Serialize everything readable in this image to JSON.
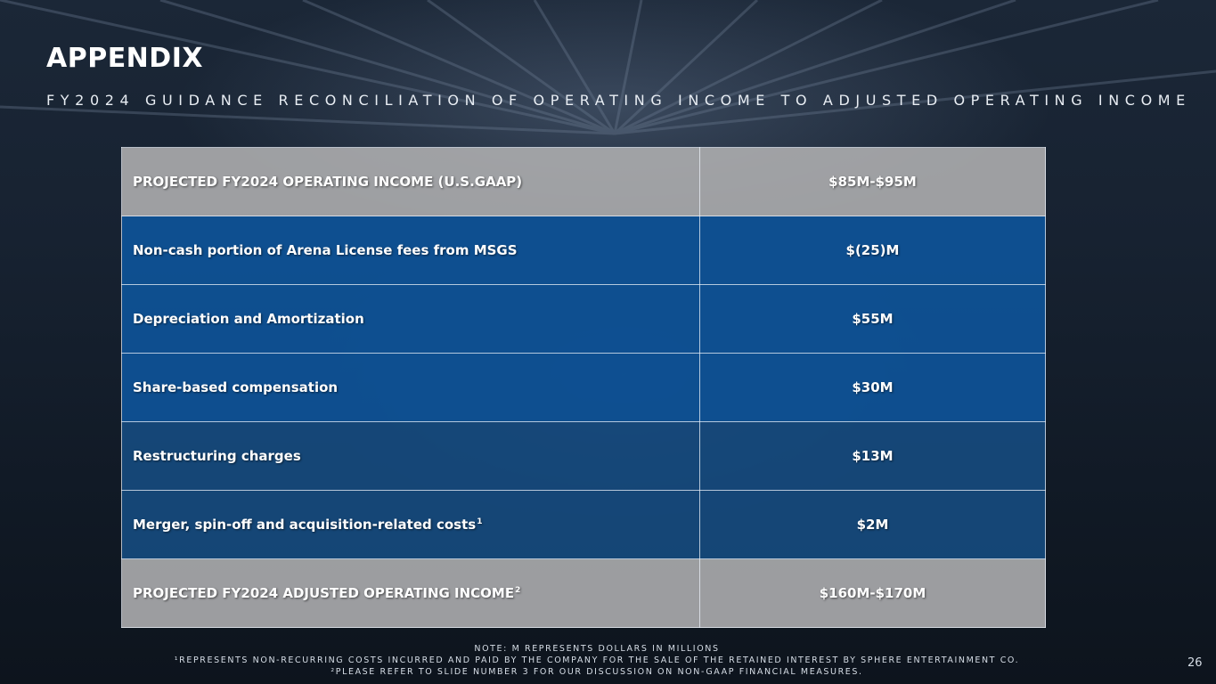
{
  "slide": {
    "title": "APPENDIX",
    "subtitle": "FY2024 GUIDANCE RECONCILIATION OF OPERATING INCOME TO ADJUSTED OPERATING INCOME",
    "page_number": "26"
  },
  "table": {
    "rows": [
      {
        "label": "PROJECTED FY2024 OPERATING INCOME (U.S.GAAP)",
        "sup": "",
        "value": "$85M-$95M",
        "style": "gray"
      },
      {
        "label": "Non-cash portion of Arena License fees from MSGS",
        "sup": "",
        "value": "$(25)M",
        "style": "blue"
      },
      {
        "label": "Depreciation and Amortization",
        "sup": "",
        "value": "$55M",
        "style": "blue"
      },
      {
        "label": "Share-based compensation",
        "sup": "",
        "value": "$30M",
        "style": "blue"
      },
      {
        "label": "Restructuring charges",
        "sup": "",
        "value": "$13M",
        "style": "blue2"
      },
      {
        "label": "Merger, spin-off and acquisition-related costs",
        "sup": "1",
        "value": "$2M",
        "style": "blue2"
      },
      {
        "label": "PROJECTED FY2024 ADJUSTED OPERATING INCOME",
        "sup": "2",
        "value": "$160M-$170M",
        "style": "gray"
      }
    ]
  },
  "notes": {
    "line1": "NOTE: M REPRESENTS DOLLARS IN MILLIONS",
    "line2": "¹REPRESENTS NON-RECURRING COSTS INCURRED AND PAID BY THE COMPANY FOR THE SALE OF THE RETAINED INTEREST BY SPHERE ENTERTAINMENT CO.",
    "line3": "²PLEASE REFER TO SLIDE NUMBER 3 FOR OUR DISCUSSION ON NON-GAAP FINANCIAL MEASURES."
  },
  "colors": {
    "header_row": "#b0b0b2",
    "body_row": "#0e5296",
    "body_row_dark": "#164c82",
    "background": "#172231"
  }
}
